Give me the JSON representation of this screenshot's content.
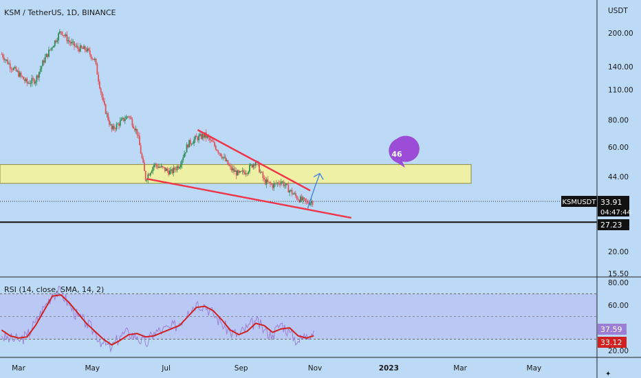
{
  "chart_data": {
    "type": "candlestick",
    "symbol_title": "KSM / TetherUS, 1D, BINANCE",
    "price_axis": {
      "unit_label": "USDT",
      "scale": "log",
      "ticks": [
        "200.00",
        "140.00",
        "110.00",
        "80.00",
        "60.00",
        "44.00",
        "20.00",
        "15.50"
      ],
      "tick_values": [
        200,
        140,
        110,
        80,
        60,
        44,
        20,
        15.5
      ]
    },
    "time_axis": {
      "labels": [
        "Mar",
        "May",
        "Jul",
        "Sep",
        "Nov",
        "2023",
        "Mar",
        "May"
      ]
    },
    "last_price": {
      "symbol": "KSMUSDT",
      "price": "33.91",
      "countdown": "04:47:44"
    },
    "horizontal_line": {
      "value": "27.23",
      "price": 27.23
    },
    "support_zone": {
      "low": 41,
      "high": 50
    },
    "wedge_upper_line": {
      "start": [
        "Jul 27",
        72
      ],
      "end": [
        "Oct 28",
        38
      ]
    },
    "wedge_lower_line": {
      "start": [
        "Jun 15",
        43
      ],
      "end": [
        "Dec 1",
        28.5
      ]
    },
    "projection_arrow": {
      "from_date": "Oct 26",
      "to_date": "Nov 5"
    },
    "bubble_label": "46",
    "series": [
      {
        "name": "KSM price",
        "points": [
          [
            "2022-02-15",
            160
          ],
          [
            "2022-02-22",
            142
          ],
          [
            "2022-03-01",
            130
          ],
          [
            "2022-03-08",
            118
          ],
          [
            "2022-03-15",
            122
          ],
          [
            "2022-03-22",
            150
          ],
          [
            "2022-03-29",
            175
          ],
          [
            "2022-04-05",
            205
          ],
          [
            "2022-04-12",
            182
          ],
          [
            "2022-04-19",
            170
          ],
          [
            "2022-04-26",
            168
          ],
          [
            "2022-05-03",
            150
          ],
          [
            "2022-05-10",
            95
          ],
          [
            "2022-05-17",
            72
          ],
          [
            "2022-05-24",
            78
          ],
          [
            "2022-05-31",
            84
          ],
          [
            "2022-06-07",
            70
          ],
          [
            "2022-06-14",
            43
          ],
          [
            "2022-06-21",
            50
          ],
          [
            "2022-06-28",
            48
          ],
          [
            "2022-07-05",
            46
          ],
          [
            "2022-07-12",
            50
          ],
          [
            "2022-07-19",
            62
          ],
          [
            "2022-07-26",
            66
          ],
          [
            "2022-08-02",
            68
          ],
          [
            "2022-08-09",
            62
          ],
          [
            "2022-08-16",
            55
          ],
          [
            "2022-08-23",
            48
          ],
          [
            "2022-08-30",
            45
          ],
          [
            "2022-09-06",
            47
          ],
          [
            "2022-09-13",
            52
          ],
          [
            "2022-09-20",
            42
          ],
          [
            "2022-09-27",
            40
          ],
          [
            "2022-10-04",
            42
          ],
          [
            "2022-10-11",
            38
          ],
          [
            "2022-10-18",
            35
          ],
          [
            "2022-10-25",
            33.5
          ],
          [
            "2022-10-31",
            33.91
          ]
        ]
      }
    ],
    "rsi": {
      "label": "RSI (14, close, SMA, 14, 2)",
      "axis_ticks": [
        "80.00",
        "60.00",
        "20.00"
      ],
      "tick_values": [
        80,
        60,
        20
      ],
      "band": [
        30,
        70
      ],
      "rsi_value": "37.59",
      "sma_value": "33.12",
      "rsi_points": [
        [
          "2022-02-15",
          33
        ],
        [
          "2022-02-22",
          30
        ],
        [
          "2022-03-01",
          29
        ],
        [
          "2022-03-08",
          33
        ],
        [
          "2022-03-15",
          45
        ],
        [
          "2022-03-22",
          58
        ],
        [
          "2022-03-29",
          70
        ],
        [
          "2022-04-05",
          72
        ],
        [
          "2022-04-12",
          60
        ],
        [
          "2022-04-19",
          50
        ],
        [
          "2022-04-26",
          44
        ],
        [
          "2022-05-03",
          36
        ],
        [
          "2022-05-10",
          26
        ],
        [
          "2022-05-17",
          22
        ],
        [
          "2022-05-24",
          33
        ],
        [
          "2022-05-31",
          36
        ],
        [
          "2022-06-07",
          32
        ],
        [
          "2022-06-14",
          25
        ],
        [
          "2022-06-21",
          36
        ],
        [
          "2022-06-28",
          38
        ],
        [
          "2022-07-05",
          40
        ],
        [
          "2022-07-12",
          44
        ],
        [
          "2022-07-19",
          55
        ],
        [
          "2022-07-26",
          62
        ],
        [
          "2022-08-02",
          60
        ],
        [
          "2022-08-09",
          52
        ],
        [
          "2022-08-16",
          44
        ],
        [
          "2022-08-23",
          36
        ],
        [
          "2022-08-30",
          34
        ],
        [
          "2022-09-06",
          40
        ],
        [
          "2022-09-13",
          46
        ],
        [
          "2022-09-20",
          38
        ],
        [
          "2022-09-27",
          34
        ],
        [
          "2022-10-04",
          44
        ],
        [
          "2022-10-11",
          36
        ],
        [
          "2022-10-18",
          28
        ],
        [
          "2022-10-25",
          34
        ],
        [
          "2022-10-31",
          37.59
        ]
      ],
      "sma_points": [
        [
          "2022-02-15",
          38
        ],
        [
          "2022-02-22",
          33
        ],
        [
          "2022-03-01",
          31
        ],
        [
          "2022-03-08",
          32
        ],
        [
          "2022-03-15",
          42
        ],
        [
          "2022-03-22",
          55
        ],
        [
          "2022-03-29",
          68
        ],
        [
          "2022-04-05",
          69
        ],
        [
          "2022-04-12",
          62
        ],
        [
          "2022-04-19",
          53
        ],
        [
          "2022-04-26",
          44
        ],
        [
          "2022-05-03",
          37
        ],
        [
          "2022-05-10",
          30
        ],
        [
          "2022-05-17",
          25
        ],
        [
          "2022-05-24",
          29
        ],
        [
          "2022-05-31",
          34
        ],
        [
          "2022-06-07",
          35
        ],
        [
          "2022-06-14",
          32
        ],
        [
          "2022-06-21",
          33
        ],
        [
          "2022-06-28",
          36
        ],
        [
          "2022-07-05",
          39
        ],
        [
          "2022-07-12",
          42
        ],
        [
          "2022-07-19",
          50
        ],
        [
          "2022-07-26",
          58
        ],
        [
          "2022-08-02",
          59
        ],
        [
          "2022-08-09",
          55
        ],
        [
          "2022-08-16",
          47
        ],
        [
          "2022-08-23",
          38
        ],
        [
          "2022-08-30",
          34
        ],
        [
          "2022-09-06",
          37
        ],
        [
          "2022-09-13",
          44
        ],
        [
          "2022-09-20",
          42
        ],
        [
          "2022-09-27",
          36
        ],
        [
          "2022-10-04",
          39
        ],
        [
          "2022-10-11",
          40
        ],
        [
          "2022-10-18",
          33
        ],
        [
          "2022-10-25",
          31
        ],
        [
          "2022-10-31",
          33.12
        ]
      ]
    }
  },
  "colors": {
    "background": "#bcd9f6",
    "bull": "#2e8b57",
    "bear": "#e0535a",
    "zone_fill": "#eef0a6",
    "zone_stroke": "#8a8a3a",
    "trendline": "#f0364a",
    "arrow": "#3b7fe0",
    "bubble": "#9c4dd8",
    "rsi_line": "#9b7fd6",
    "rsi_sma": "#d12020",
    "rsi_band": "#b9c4f3",
    "axis_text": "#1a1a1a"
  }
}
